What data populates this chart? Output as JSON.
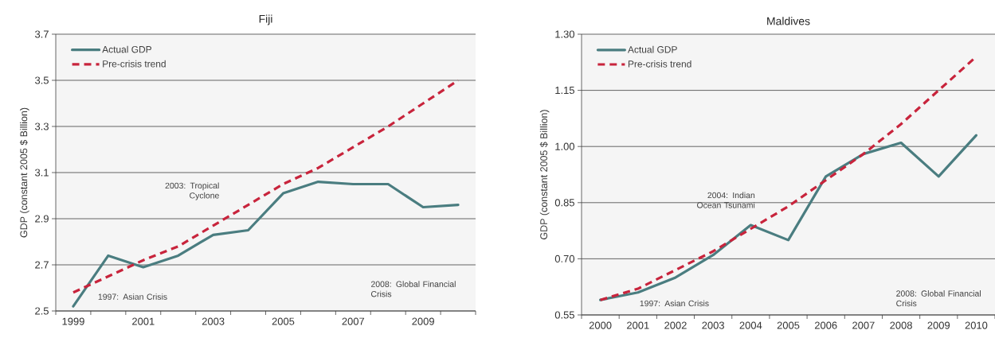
{
  "chart_data": [
    {
      "type": "line",
      "title": "Fiji",
      "ylabel": "GDP (constant 2005 $ Billion)",
      "categories": [
        "1999",
        null,
        "2001",
        null,
        "2003",
        null,
        "2005",
        null,
        "2007",
        null,
        "2009",
        null
      ],
      "series": [
        {
          "name": "Actual GDP",
          "color": "#4a7d80",
          "line_style": "solid",
          "values": [
            2.52,
            2.74,
            2.69,
            2.74,
            2.83,
            2.85,
            3.01,
            3.06,
            3.05,
            3.05,
            2.95,
            2.96
          ]
        },
        {
          "name": "Pre-crisis trend",
          "color": "#c8243c",
          "line_style": "dashed",
          "values": [
            2.58,
            2.65,
            2.72,
            2.78,
            2.87,
            2.96,
            3.05,
            3.12,
            3.21,
            3.3,
            3.4,
            3.5
          ]
        }
      ],
      "ylim": [
        2.5,
        3.7
      ],
      "yticks": [
        2.5,
        2.7,
        2.9,
        3.1,
        3.3,
        3.5,
        3.7
      ],
      "grid": "y",
      "legend": "top left",
      "marker": "none",
      "annotations": [
        "1997: Asian Crisis",
        "2003: Tropical Cyclone",
        "2008: Global Financial Crisis"
      ]
    },
    {
      "type": "line",
      "title": "Maldives",
      "ylabel": "GDP (constant 2005 $ Billion)",
      "categories": [
        "2000",
        "2001",
        "2002",
        "2003",
        "2004",
        "2005",
        "2006",
        "2007",
        "2008",
        "2009",
        "2010"
      ],
      "series": [
        {
          "name": "Actual GDP",
          "color": "#4a7d80",
          "line_style": "solid",
          "values": [
            0.59,
            0.61,
            0.65,
            0.71,
            0.79,
            0.75,
            0.92,
            0.98,
            1.01,
            0.92,
            1.03
          ]
        },
        {
          "name": "Pre-crisis trend",
          "color": "#c8243c",
          "line_style": "dashed",
          "values": [
            0.59,
            0.62,
            0.67,
            0.72,
            0.78,
            0.84,
            0.91,
            0.98,
            1.06,
            1.15,
            1.24
          ]
        }
      ],
      "ylim": [
        0.55,
        1.3
      ],
      "yticks": [
        0.55,
        {
          "value": 0.7,
          "label": "0.70"
        },
        0.85,
        {
          "value": 1.0,
          "label": "1.00"
        },
        1.15,
        {
          "value": 1.3,
          "label": "1.30"
        }
      ],
      "grid": "y",
      "legend": "top left",
      "marker": "none",
      "annotations": [
        "1997: Asian Crisis",
        "2004: Indian Ocean Tsunami",
        "2008: Global Financial Crisis"
      ]
    }
  ]
}
